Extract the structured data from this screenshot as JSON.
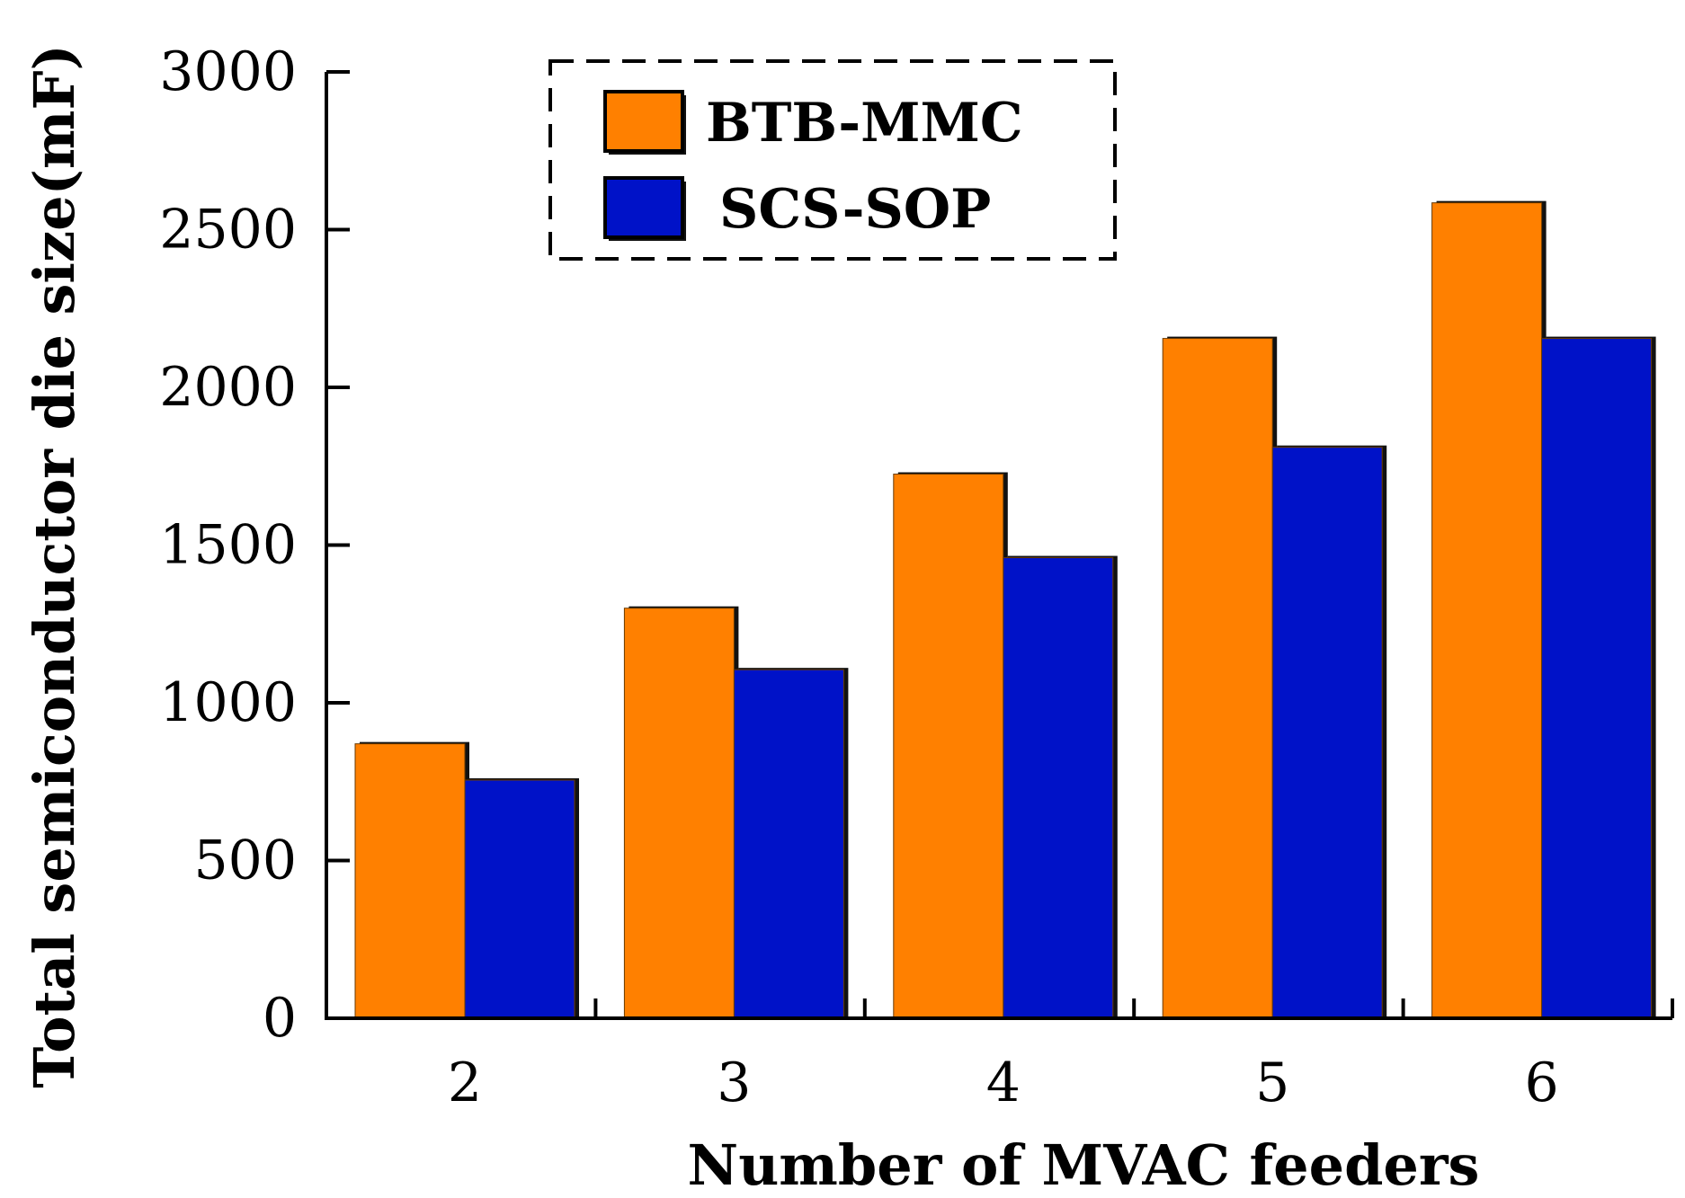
{
  "chart_data": {
    "type": "bar",
    "categories": [
      "2",
      "3",
      "4",
      "5",
      "6"
    ],
    "series": [
      {
        "name": "BTB-MMC",
        "values": [
          870,
          1300,
          1725,
          2155,
          2585
        ]
      },
      {
        "name": "SCS-SOP",
        "values": [
          755,
          1105,
          1460,
          1810,
          2155
        ]
      }
    ],
    "title": "",
    "xlabel": "Number of MVAC feeders",
    "ylabel": "Total semiconductor die size(mF)",
    "ylim": [
      0,
      3000
    ],
    "yticks": [
      "0",
      "500",
      "1000",
      "1500",
      "2000",
      "2500",
      "3000"
    ],
    "grid": false,
    "legend_position": "top-left",
    "colors": {
      "BTB-MMC": "#FF8000",
      "SCS-SOP": "#0012C8"
    }
  }
}
